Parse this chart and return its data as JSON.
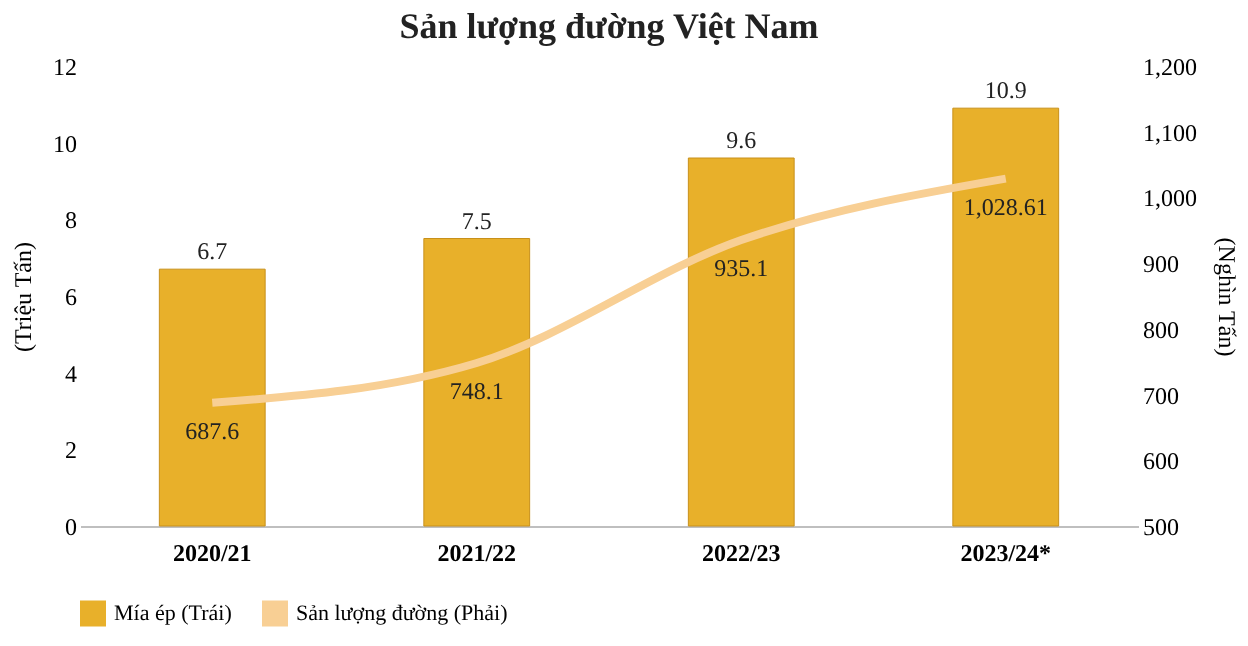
{
  "chart_data": {
    "type": "bar",
    "title": "Sản lượng đường Việt Nam",
    "ylabel": "(Triệu Tấn)",
    "y2label": "(Nghìn Tấn)",
    "categories": [
      "2020/21",
      "2021/22",
      "2022/23",
      "2023/24*"
    ],
    "series": [
      {
        "name": "Mía ép (Trái)",
        "color": "#e8b02a",
        "values": [
          6.7,
          7.5,
          9.6,
          10.9
        ],
        "value_labels": [
          "6.7",
          "7.5",
          "9.6",
          "10.9"
        ]
      },
      {
        "name": "Sản lượng đường (Phải)",
        "type": "line",
        "axis": "y2",
        "color": "#f8cf94",
        "values": [
          687.6,
          748.1,
          935.1,
          1028.61
        ],
        "value_labels": [
          "687.6",
          "748.1",
          "935.1",
          "1,028.61"
        ]
      }
    ],
    "ylim": [
      0,
      12
    ],
    "yticks": [
      0,
      2,
      4,
      6,
      8,
      10,
      12
    ],
    "y2lim": [
      500,
      1200
    ],
    "y2ticks": [
      500,
      600,
      700,
      800,
      900,
      {
        "value": 1000,
        "label": "1,000"
      },
      {
        "value": 1100,
        "label": "1,100"
      },
      {
        "value": 1200,
        "label": "1,200"
      }
    ],
    "grid": false,
    "legend": "bottom"
  }
}
